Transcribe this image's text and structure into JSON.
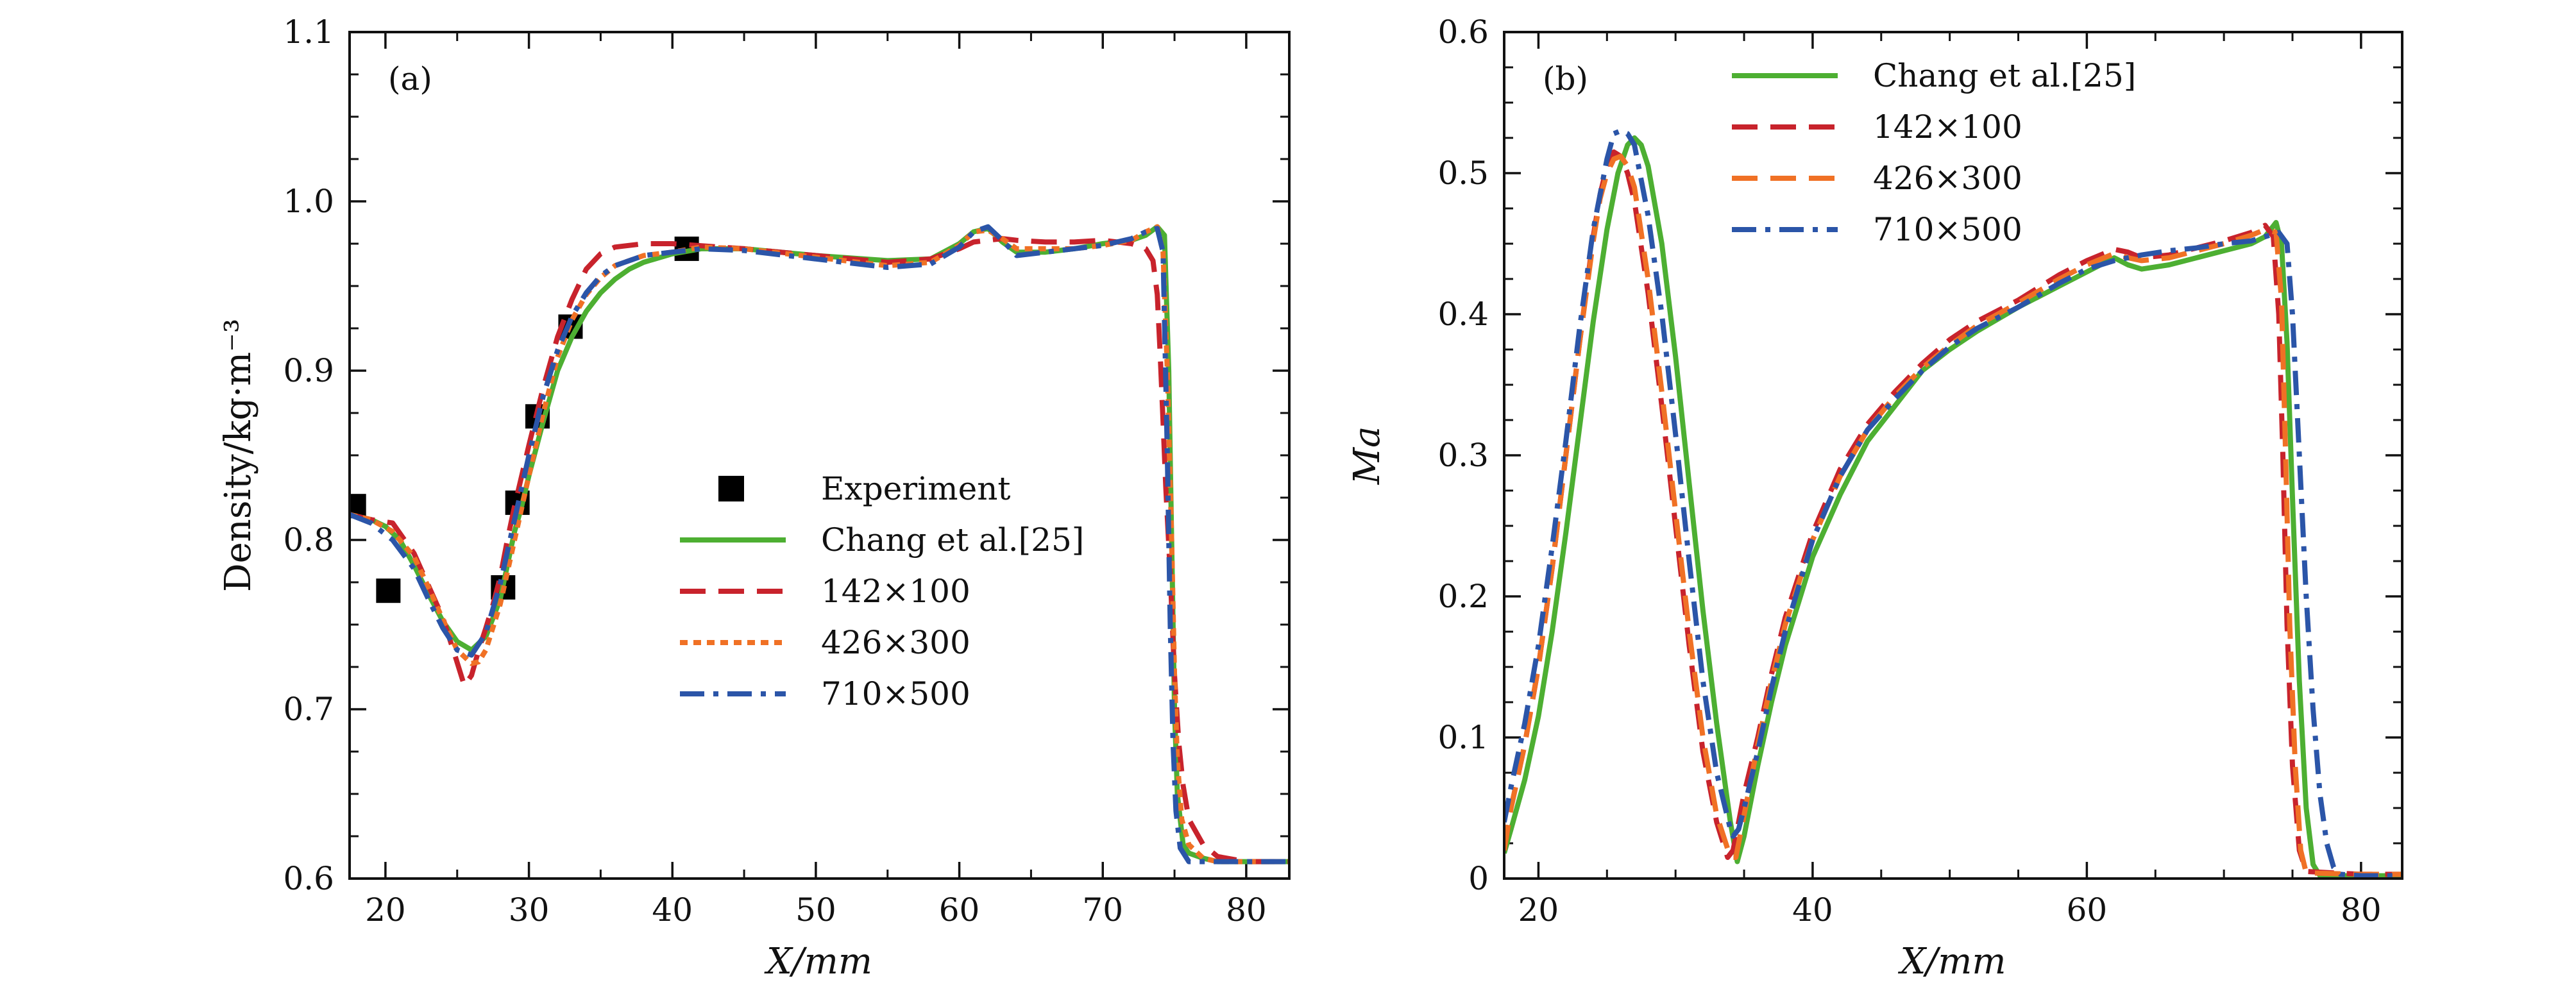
{
  "chart_data": [
    {
      "type": "line",
      "panel_label": "(a)",
      "xlabel": "X/mm",
      "ylabel": "Density/kg·m⁻³",
      "xlim": [
        17.5,
        83
      ],
      "ylim": [
        0.6,
        1.1
      ],
      "xticks": [
        20,
        30,
        40,
        50,
        60,
        70,
        80
      ],
      "yticks": [
        0.6,
        0.7,
        0.8,
        0.9,
        1.0,
        1.1
      ],
      "xtick_labels": [
        "20",
        "30",
        "40",
        "50",
        "60",
        "70",
        "80"
      ],
      "ytick_labels": [
        "0.6",
        "0.7",
        "0.8",
        "0.9",
        "1.0",
        "1.1"
      ],
      "legend_position": "center-right",
      "series": [
        {
          "name": "Experiment",
          "color": "#000000",
          "style": "marker-square",
          "x": [
            17.8,
            20.2,
            28.2,
            29.2,
            30.6,
            32.9,
            41.0
          ],
          "y": [
            0.82,
            0.77,
            0.772,
            0.822,
            0.873,
            0.926,
            0.972
          ]
        },
        {
          "name": "Chang et al.[25]",
          "color": "#4daf32",
          "style": "solid",
          "x": [
            17.5,
            19,
            20,
            21,
            22,
            23,
            24,
            25,
            26,
            27,
            28,
            28.5,
            29,
            29.5,
            30,
            31,
            32,
            33,
            34,
            35,
            36,
            37,
            38,
            40,
            42,
            45,
            50,
            55,
            58,
            60,
            61,
            62,
            63,
            64,
            66,
            68,
            70,
            72,
            73,
            73.8,
            74.3,
            74.6,
            74.8,
            75,
            75.2,
            75.6,
            76,
            77,
            78,
            80,
            83
          ],
          "y": [
            0.815,
            0.812,
            0.808,
            0.8,
            0.785,
            0.768,
            0.752,
            0.74,
            0.735,
            0.743,
            0.765,
            0.785,
            0.805,
            0.82,
            0.838,
            0.87,
            0.9,
            0.92,
            0.935,
            0.946,
            0.954,
            0.96,
            0.964,
            0.969,
            0.972,
            0.972,
            0.968,
            0.965,
            0.966,
            0.975,
            0.982,
            0.984,
            0.976,
            0.97,
            0.97,
            0.972,
            0.975,
            0.977,
            0.98,
            0.985,
            0.98,
            0.9,
            0.8,
            0.7,
            0.65,
            0.62,
            0.615,
            0.612,
            0.61,
            0.61,
            0.61
          ]
        },
        {
          "name": "142×100",
          "color": "#c8232c",
          "style": "dashed",
          "x": [
            17.5,
            19,
            20.5,
            22,
            23,
            24,
            24.8,
            25.5,
            26,
            26.5,
            27,
            27.5,
            28,
            28.5,
            29,
            30,
            31,
            32,
            33,
            34,
            35,
            36,
            38,
            40,
            45,
            50,
            55,
            58,
            60,
            61,
            62,
            63,
            64,
            66,
            68,
            70,
            72,
            73,
            73.5,
            73.8,
            74,
            74.2,
            74.4,
            74.7,
            75,
            75.3,
            75.6,
            76,
            77,
            78,
            80,
            83
          ],
          "y": [
            0.815,
            0.812,
            0.81,
            0.792,
            0.773,
            0.754,
            0.733,
            0.714,
            0.72,
            0.735,
            0.748,
            0.762,
            0.778,
            0.8,
            0.82,
            0.856,
            0.89,
            0.92,
            0.942,
            0.96,
            0.969,
            0.973,
            0.975,
            0.975,
            0.972,
            0.968,
            0.964,
            0.966,
            0.972,
            0.976,
            0.977,
            0.978,
            0.977,
            0.976,
            0.976,
            0.977,
            0.975,
            0.972,
            0.965,
            0.945,
            0.91,
            0.87,
            0.83,
            0.78,
            0.72,
            0.68,
            0.655,
            0.635,
            0.62,
            0.613,
            0.61,
            0.61
          ]
        },
        {
          "name": "426×300",
          "color": "#f07125",
          "style": "dotted",
          "x": [
            17.5,
            19,
            20.5,
            22,
            23,
            24,
            25,
            26,
            26.5,
            27,
            28,
            29,
            30,
            31,
            32,
            33,
            34,
            35,
            36,
            38,
            40,
            42,
            45,
            50,
            55,
            58,
            60,
            61,
            62,
            63,
            64,
            66,
            68,
            70,
            72,
            73,
            73.8,
            74.2,
            74.5,
            74.8,
            75,
            75.2,
            75.5,
            76,
            77,
            78,
            80,
            83
          ],
          "y": [
            0.815,
            0.812,
            0.805,
            0.79,
            0.772,
            0.753,
            0.735,
            0.727,
            0.728,
            0.735,
            0.762,
            0.8,
            0.838,
            0.875,
            0.908,
            0.93,
            0.945,
            0.955,
            0.962,
            0.968,
            0.97,
            0.973,
            0.972,
            0.967,
            0.962,
            0.964,
            0.974,
            0.982,
            0.983,
            0.978,
            0.972,
            0.972,
            0.972,
            0.974,
            0.977,
            0.982,
            0.985,
            0.97,
            0.9,
            0.8,
            0.72,
            0.67,
            0.635,
            0.62,
            0.612,
            0.61,
            0.61,
            0.61
          ]
        },
        {
          "name": "710×500",
          "color": "#2b55a8",
          "style": "dashdot",
          "x": [
            17.5,
            19,
            20.5,
            22,
            23,
            24,
            25,
            26,
            27,
            28,
            29,
            30,
            31,
            32,
            33,
            34,
            35,
            36,
            38,
            40,
            42,
            45,
            50,
            55,
            58,
            60,
            61,
            62,
            63,
            64,
            66,
            68,
            70,
            72,
            73,
            73.8,
            74.2,
            74.5,
            74.7,
            74.9,
            75.1,
            75.4,
            76,
            77,
            78,
            80,
            83
          ],
          "y": [
            0.815,
            0.81,
            0.8,
            0.783,
            0.765,
            0.748,
            0.735,
            0.732,
            0.745,
            0.774,
            0.812,
            0.85,
            0.885,
            0.912,
            0.932,
            0.946,
            0.956,
            0.962,
            0.968,
            0.97,
            0.972,
            0.971,
            0.966,
            0.961,
            0.963,
            0.973,
            0.982,
            0.985,
            0.977,
            0.968,
            0.97,
            0.972,
            0.974,
            0.978,
            0.982,
            0.984,
            0.97,
            0.85,
            0.75,
            0.68,
            0.64,
            0.618,
            0.61,
            0.61,
            0.61,
            0.61,
            0.61
          ]
        }
      ]
    },
    {
      "type": "line",
      "panel_label": "(b)",
      "xlabel": "X/mm",
      "ylabel": "Ma",
      "xlim": [
        17.5,
        83
      ],
      "ylim": [
        0,
        0.6
      ],
      "xticks": [
        20,
        40,
        60,
        80
      ],
      "yticks": [
        0,
        0.1,
        0.2,
        0.3,
        0.4,
        0.5,
        0.6
      ],
      "xtick_labels": [
        "20",
        "40",
        "60",
        "80"
      ],
      "ytick_labels": [
        "0",
        "0.1",
        "0.2",
        "0.3",
        "0.4",
        "0.5",
        "0.6"
      ],
      "legend_position": "top-center",
      "series": [
        {
          "name": "Chang et al.[25]",
          "color": "#4daf32",
          "style": "solid",
          "x": [
            17.5,
            18,
            19,
            20,
            21,
            22,
            23,
            24,
            25,
            25.8,
            26.5,
            27,
            27.5,
            28,
            29,
            30,
            31,
            32,
            33,
            34,
            34.5,
            35,
            36,
            37,
            38,
            40,
            42,
            44,
            46,
            48,
            50,
            52,
            55,
            58,
            60,
            62,
            63,
            64,
            66,
            68,
            70,
            72,
            73,
            73.8,
            74.2,
            74.6,
            75,
            75.5,
            76,
            76.5,
            77,
            80,
            83
          ],
          "y": [
            0.018,
            0.035,
            0.07,
            0.115,
            0.175,
            0.245,
            0.32,
            0.395,
            0.46,
            0.5,
            0.52,
            0.525,
            0.52,
            0.505,
            0.45,
            0.37,
            0.28,
            0.19,
            0.11,
            0.04,
            0.012,
            0.03,
            0.08,
            0.125,
            0.165,
            0.228,
            0.272,
            0.31,
            0.335,
            0.36,
            0.375,
            0.388,
            0.405,
            0.42,
            0.43,
            0.44,
            0.435,
            0.432,
            0.435,
            0.44,
            0.445,
            0.45,
            0.455,
            0.465,
            0.45,
            0.38,
            0.27,
            0.14,
            0.05,
            0.01,
            0.002,
            0.002,
            0.002
          ]
        },
        {
          "name": "142×100",
          "color": "#c8232c",
          "style": "dashed",
          "x": [
            17.5,
            18,
            19,
            20,
            21,
            22,
            23,
            24,
            24.5,
            25,
            25.5,
            26,
            26.5,
            27,
            28,
            29,
            30,
            31,
            32,
            33,
            33.8,
            34.2,
            34.6,
            35,
            36,
            37,
            38,
            40,
            42,
            44,
            46,
            48,
            50,
            52,
            55,
            58,
            60,
            62,
            63,
            64,
            66,
            68,
            70,
            72,
            73,
            73.6,
            74,
            74.3,
            74.6,
            75,
            75.5,
            76,
            80,
            83
          ],
          "y": [
            0.02,
            0.05,
            0.095,
            0.15,
            0.22,
            0.3,
            0.38,
            0.455,
            0.485,
            0.505,
            0.515,
            0.512,
            0.5,
            0.48,
            0.415,
            0.335,
            0.25,
            0.165,
            0.09,
            0.04,
            0.015,
            0.02,
            0.04,
            0.06,
            0.1,
            0.145,
            0.185,
            0.245,
            0.29,
            0.322,
            0.345,
            0.365,
            0.382,
            0.395,
            0.41,
            0.428,
            0.438,
            0.446,
            0.444,
            0.44,
            0.442,
            0.447,
            0.452,
            0.458,
            0.463,
            0.455,
            0.4,
            0.3,
            0.18,
            0.08,
            0.02,
            0.005,
            0.003,
            0.003
          ]
        },
        {
          "name": "426×300",
          "color": "#f07125",
          "style": "dashed",
          "x": [
            17.5,
            18,
            19,
            20,
            21,
            22,
            23,
            24,
            24.5,
            25,
            25.5,
            26,
            26.5,
            27,
            28,
            29,
            30,
            31,
            32,
            33,
            34,
            34.4,
            34.8,
            35.5,
            36,
            37,
            38,
            40,
            42,
            44,
            46,
            48,
            50,
            52,
            55,
            58,
            60,
            62,
            63,
            64,
            66,
            68,
            70,
            72,
            73,
            73.8,
            74.2,
            74.5,
            74.8,
            75.2,
            75.6,
            76,
            80,
            83
          ],
          "y": [
            0.02,
            0.05,
            0.095,
            0.15,
            0.22,
            0.3,
            0.38,
            0.452,
            0.482,
            0.5,
            0.51,
            0.512,
            0.505,
            0.49,
            0.425,
            0.345,
            0.26,
            0.175,
            0.1,
            0.045,
            0.015,
            0.015,
            0.035,
            0.07,
            0.095,
            0.14,
            0.18,
            0.24,
            0.285,
            0.318,
            0.342,
            0.362,
            0.378,
            0.392,
            0.408,
            0.425,
            0.435,
            0.443,
            0.44,
            0.438,
            0.44,
            0.445,
            0.45,
            0.456,
            0.46,
            0.458,
            0.41,
            0.3,
            0.18,
            0.08,
            0.02,
            0.004,
            0.003,
            0.003
          ]
        },
        {
          "name": "710×500",
          "color": "#2b55a8",
          "style": "dashdot",
          "x": [
            17.5,
            18,
            19,
            20,
            21,
            22,
            23,
            24,
            25,
            25.5,
            26,
            26.5,
            27,
            28,
            29,
            30,
            31,
            32,
            33,
            34,
            34.2,
            34.6,
            35,
            36,
            37,
            38,
            40,
            42,
            44,
            46,
            48,
            50,
            52,
            55,
            58,
            60,
            62,
            63,
            64,
            66,
            68,
            70,
            72,
            73,
            74,
            74.6,
            75,
            75.5,
            76,
            76.5,
            77,
            77.5,
            78,
            78.5,
            80,
            83
          ],
          "y": [
            0.04,
            0.065,
            0.11,
            0.165,
            0.235,
            0.31,
            0.39,
            0.46,
            0.51,
            0.528,
            0.53,
            0.528,
            0.52,
            0.47,
            0.4,
            0.315,
            0.225,
            0.14,
            0.075,
            0.035,
            0.03,
            0.035,
            0.05,
            0.09,
            0.135,
            0.175,
            0.24,
            0.285,
            0.318,
            0.34,
            0.36,
            0.377,
            0.39,
            0.405,
            0.422,
            0.432,
            0.438,
            0.44,
            0.442,
            0.445,
            0.447,
            0.45,
            0.452,
            0.455,
            0.458,
            0.45,
            0.4,
            0.3,
            0.2,
            0.12,
            0.06,
            0.025,
            0.008,
            0.003,
            0.002,
            0.002
          ]
        }
      ]
    }
  ]
}
